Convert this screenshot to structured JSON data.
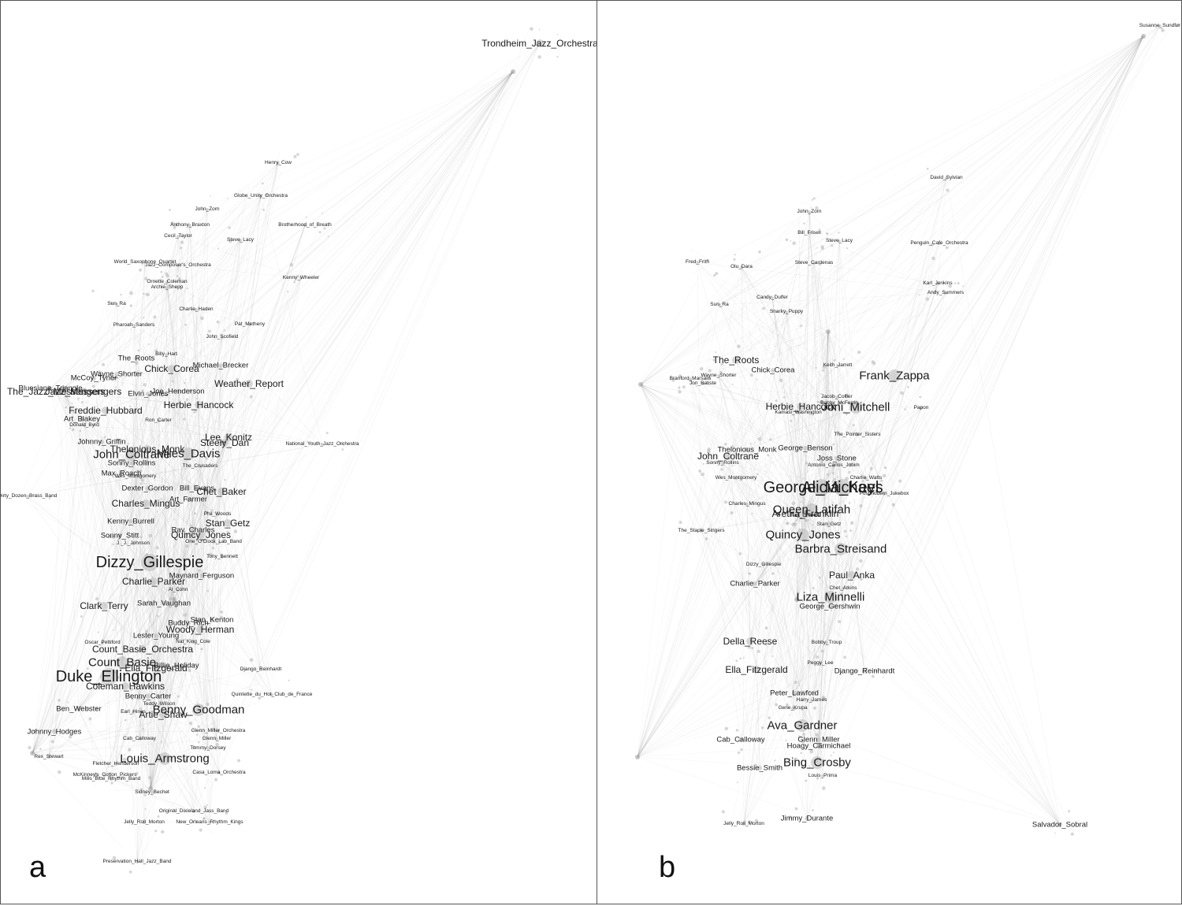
{
  "panels": [
    {
      "letter": "a",
      "labels": [
        {
          "text": "Trondheim_Jazz_Orchestra",
          "size": "m"
        },
        {
          "text": "Henry_Cow",
          "size": "xs"
        },
        {
          "text": "Globe_Unity_Orchestra",
          "size": "xs"
        },
        {
          "text": "John_Zorn",
          "size": "xs"
        },
        {
          "text": "Anthony_Braxton",
          "size": "xs"
        },
        {
          "text": "Cecil_Taylor",
          "size": "xs"
        },
        {
          "text": "Brotherhood_of_Breath",
          "size": "xs"
        },
        {
          "text": "Steve_Lacy",
          "size": "xs"
        },
        {
          "text": "World_Saxophone_Quartet",
          "size": "xs"
        },
        {
          "text": "Jazz_Composer's_Orchestra",
          "size": "xs"
        },
        {
          "text": "Ornette_Coleman",
          "size": "xs"
        },
        {
          "text": "Archie_Shepp",
          "size": "xs"
        },
        {
          "text": "Kenny_Wheeler",
          "size": "xs"
        },
        {
          "text": "Sun_Ra",
          "size": "xs"
        },
        {
          "text": "Charlie_Haden",
          "size": "xs"
        },
        {
          "text": "Pharoah_Sanders",
          "size": "xs"
        },
        {
          "text": "Pat_Metheny",
          "size": "xs"
        },
        {
          "text": "John_Scofield",
          "size": "xs"
        },
        {
          "text": "The_Roots",
          "size": "s"
        },
        {
          "text": "Billy_Hart",
          "size": "xs"
        },
        {
          "text": "Chick_Corea",
          "size": "m"
        },
        {
          "text": "Michael_Brecker",
          "size": "s"
        },
        {
          "text": "Wayne_Shorter",
          "size": "s"
        },
        {
          "text": "McCoy_Tyner",
          "size": "s"
        },
        {
          "text": "Bluesiana_Triangle",
          "size": "s"
        },
        {
          "text": "Jazz_Messengers",
          "size": "m"
        },
        {
          "text": "The_Jazz_Messengers",
          "size": "m"
        },
        {
          "text": "Joe_Henderson",
          "size": "s"
        },
        {
          "text": "Elvin_Jones",
          "size": "s"
        },
        {
          "text": "Weather_Report",
          "size": "m"
        },
        {
          "text": "Freddie_Hubbard",
          "size": "m"
        },
        {
          "text": "Herbie_Hancock",
          "size": "m"
        },
        {
          "text": "Art_Blakey",
          "size": "s"
        },
        {
          "text": "Donald_Byrd",
          "size": "xs"
        },
        {
          "text": "Ron_Carter",
          "size": "xs"
        },
        {
          "text": "Lee_Konitz",
          "size": "m"
        },
        {
          "text": "Steely_Dan",
          "size": "m"
        },
        {
          "text": "Johnny_Griffin",
          "size": "s"
        },
        {
          "text": "Thelonious_Monk",
          "size": "m"
        },
        {
          "text": "John_Coltrane",
          "size": "l"
        },
        {
          "text": "Miles_Davis",
          "size": "l"
        },
        {
          "text": "National_Youth_Jazz_Orchestra",
          "size": "xs"
        },
        {
          "text": "Sonny_Rollins",
          "size": "s"
        },
        {
          "text": "Max_Roach",
          "size": "s"
        },
        {
          "text": "Dirty_Dozen_Brass_Band",
          "size": "xs"
        },
        {
          "text": "Wes_Montgomery",
          "size": "xs"
        },
        {
          "text": "The_Crusaders",
          "size": "xs"
        },
        {
          "text": "Dexter_Gordon",
          "size": "s"
        },
        {
          "text": "Bill_Evans",
          "size": "s"
        },
        {
          "text": "Chet_Baker",
          "size": "m"
        },
        {
          "text": "Art_Farmer",
          "size": "s"
        },
        {
          "text": "Charles_Mingus",
          "size": "m"
        },
        {
          "text": "Phil_Woods",
          "size": "xs"
        },
        {
          "text": "Kenny_Burrell",
          "size": "s"
        },
        {
          "text": "Stan_Getz",
          "size": "m"
        },
        {
          "text": "Ray_Charles",
          "size": "s"
        },
        {
          "text": "Quincy_Jones",
          "size": "m"
        },
        {
          "text": "Sonny_Stitt",
          "size": "s"
        },
        {
          "text": "One_O'Clock_Lab_Band",
          "size": "xs"
        },
        {
          "text": "J._J._Johnson",
          "size": "xs"
        },
        {
          "text": "Tony_Bennett",
          "size": "xs"
        },
        {
          "text": "Dizzy_Gillespie",
          "size": "xl"
        },
        {
          "text": "Charlie_Parker",
          "size": "m"
        },
        {
          "text": "Maynard_Ferguson",
          "size": "s"
        },
        {
          "text": "Al_Cohn",
          "size": "xs"
        },
        {
          "text": "Clark_Terry",
          "size": "m"
        },
        {
          "text": "Sarah_Vaughan",
          "size": "s"
        },
        {
          "text": "Stan_Kenton",
          "size": "s"
        },
        {
          "text": "Buddy_Rich",
          "size": "s"
        },
        {
          "text": "Woody_Herman",
          "size": "m"
        },
        {
          "text": "Lester_Young",
          "size": "s"
        },
        {
          "text": "Nat_King_Cole",
          "size": "xs"
        },
        {
          "text": "Oscar_Pettiford",
          "size": "xs"
        },
        {
          "text": "Count_Basie_Orchestra",
          "size": "m"
        },
        {
          "text": "Count_Basie",
          "size": "l"
        },
        {
          "text": "Ella_Fitzgerald",
          "size": "m"
        },
        {
          "text": "Billie_Holiday",
          "size": "s"
        },
        {
          "text": "Duke_Ellington",
          "size": "xl"
        },
        {
          "text": "Django_Reinhardt",
          "size": "xs"
        },
        {
          "text": "Coleman_Hawkins",
          "size": "m"
        },
        {
          "text": "Benny_Carter",
          "size": "s"
        },
        {
          "text": "Quintette_du_Hot_Club_de_France",
          "size": "xs"
        },
        {
          "text": "Ben_Webster",
          "size": "s"
        },
        {
          "text": "Teddy_Wilson",
          "size": "xs"
        },
        {
          "text": "Benny_Goodman",
          "size": "l"
        },
        {
          "text": "Artie_Shaw",
          "size": "m"
        },
        {
          "text": "Earl_Hines",
          "size": "xs"
        },
        {
          "text": "Glenn_Miller_Orchestra",
          "size": "xs"
        },
        {
          "text": "Johnny_Hodges",
          "size": "s"
        },
        {
          "text": "Cab_Calloway",
          "size": "xs"
        },
        {
          "text": "Glenn_Miller",
          "size": "xs"
        },
        {
          "text": "Tommy_Dorsey",
          "size": "xs"
        },
        {
          "text": "Louis_Armstrong",
          "size": "l"
        },
        {
          "text": "Fletcher_Henderson",
          "size": "xs"
        },
        {
          "text": "Rex_Stewart",
          "size": "xs"
        },
        {
          "text": "Casa_Loma_Orchestra",
          "size": "xs"
        },
        {
          "text": "McKinney's_Cotton_Pickers",
          "size": "xs"
        },
        {
          "text": "Mills_Blue_Rhythm_Band",
          "size": "xs"
        },
        {
          "text": "Sidney_Bechet",
          "size": "xs"
        },
        {
          "text": "Original_Dixieland_Jass_Band",
          "size": "xs"
        },
        {
          "text": "Jelly_Roll_Morton",
          "size": "xs"
        },
        {
          "text": "New_Orleans_Rhythm_Kings",
          "size": "xs"
        },
        {
          "text": "Preservation_Hall_Jazz_Band",
          "size": "xs"
        }
      ]
    },
    {
      "letter": "b",
      "labels": [
        {
          "text": "Susanne_Sundfør",
          "size": "xs"
        },
        {
          "text": "David_Sylvian",
          "size": "xs"
        },
        {
          "text": "John_Zorn",
          "size": "xs"
        },
        {
          "text": "Bill_Frisell",
          "size": "xs"
        },
        {
          "text": "Steve_Lacy",
          "size": "xs"
        },
        {
          "text": "Penguin_Cafe_Orchestra",
          "size": "xs"
        },
        {
          "text": "Fred_Frith",
          "size": "xs"
        },
        {
          "text": "Olu_Dara",
          "size": "xs"
        },
        {
          "text": "Steve_Cardenas",
          "size": "xs"
        },
        {
          "text": "Karl_Jenkins",
          "size": "xs"
        },
        {
          "text": "Andy_Summers",
          "size": "xs"
        },
        {
          "text": "Sun_Ra",
          "size": "xs"
        },
        {
          "text": "Candy_Dulfer",
          "size": "xs"
        },
        {
          "text": "Snarky_Puppy",
          "size": "xs"
        },
        {
          "text": "The_Roots",
          "size": "m"
        },
        {
          "text": "Chick_Corea",
          "size": "s"
        },
        {
          "text": "Keith_Jarrett",
          "size": "xs"
        },
        {
          "text": "Frank_Zappa",
          "size": "l"
        },
        {
          "text": "Wayne_Shorter",
          "size": "xs"
        },
        {
          "text": "Jon_Batiste",
          "size": "xs"
        },
        {
          "text": "Branford_Marsalis",
          "size": "xs"
        },
        {
          "text": "Jacob_Collier",
          "size": "xs"
        },
        {
          "text": "Bobby_McFerrin",
          "size": "xs"
        },
        {
          "text": "Herbie_Hancock",
          "size": "m"
        },
        {
          "text": "Joni_Mitchell",
          "size": "l"
        },
        {
          "text": "Kamasi_Washington",
          "size": "xs"
        },
        {
          "text": "Papon",
          "size": "xs"
        },
        {
          "text": "The_Pointer_Sisters",
          "size": "xs"
        },
        {
          "text": "Thelonious_Monk",
          "size": "s"
        },
        {
          "text": "George_Benson",
          "size": "s"
        },
        {
          "text": "John_Coltrane",
          "size": "m"
        },
        {
          "text": "Joss_Stone",
          "size": "s"
        },
        {
          "text": "Antonio_Carlos_Jobim",
          "size": "xs"
        },
        {
          "text": "Sonny_Rollins",
          "size": "xs"
        },
        {
          "text": "Charlie_Watts",
          "size": "xs"
        },
        {
          "text": "Wes_Montgomery",
          "size": "xs"
        },
        {
          "text": "George_Michael",
          "size": "xl"
        },
        {
          "text": "Alicia_Keys",
          "size": "xl"
        },
        {
          "text": "Postmodern_Jukebox",
          "size": "xs"
        },
        {
          "text": "Charles_Mingus",
          "size": "xs"
        },
        {
          "text": "Queen_Latifah",
          "size": "l"
        },
        {
          "text": "Aretha_Franklin",
          "size": "m"
        },
        {
          "text": "Ray_Charles",
          "size": "xs"
        },
        {
          "text": "Stan_Getz",
          "size": "xs"
        },
        {
          "text": "The_Staple_Singers",
          "size": "xs"
        },
        {
          "text": "Quincy_Jones",
          "size": "l"
        },
        {
          "text": "Barbra_Streisand",
          "size": "l"
        },
        {
          "text": "Dizzy_Gillespie",
          "size": "xs"
        },
        {
          "text": "Paul_Anka",
          "size": "m"
        },
        {
          "text": "Charlie_Parker",
          "size": "s"
        },
        {
          "text": "Chet_Atkins",
          "size": "xs"
        },
        {
          "text": "Liza_Minnelli",
          "size": "l"
        },
        {
          "text": "George_Gershwin",
          "size": "s"
        },
        {
          "text": "Della_Reese",
          "size": "m"
        },
        {
          "text": "Bobby_Troup",
          "size": "xs"
        },
        {
          "text": "Peggy_Lee",
          "size": "xs"
        },
        {
          "text": "Ella_Fitzgerald",
          "size": "m"
        },
        {
          "text": "Django_Reinhardt",
          "size": "s"
        },
        {
          "text": "Peter_Lawford",
          "size": "s"
        },
        {
          "text": "Harry_James",
          "size": "xs"
        },
        {
          "text": "Gene_Krupa",
          "size": "xs"
        },
        {
          "text": "Ava_Gardner",
          "size": "l"
        },
        {
          "text": "Glenn_Miller",
          "size": "s"
        },
        {
          "text": "Cab_Calloway",
          "size": "s"
        },
        {
          "text": "Hoagy_Carmichael",
          "size": "s"
        },
        {
          "text": "Bing_Crosby",
          "size": "l"
        },
        {
          "text": "Bessie_Smith",
          "size": "s"
        },
        {
          "text": "Louis_Prima",
          "size": "xs"
        },
        {
          "text": "Jimmy_Durante",
          "size": "s"
        },
        {
          "text": "Jelly_Roll_Morton",
          "size": "xs"
        },
        {
          "text": "Salvador_Sobral",
          "size": "s"
        }
      ]
    }
  ]
}
